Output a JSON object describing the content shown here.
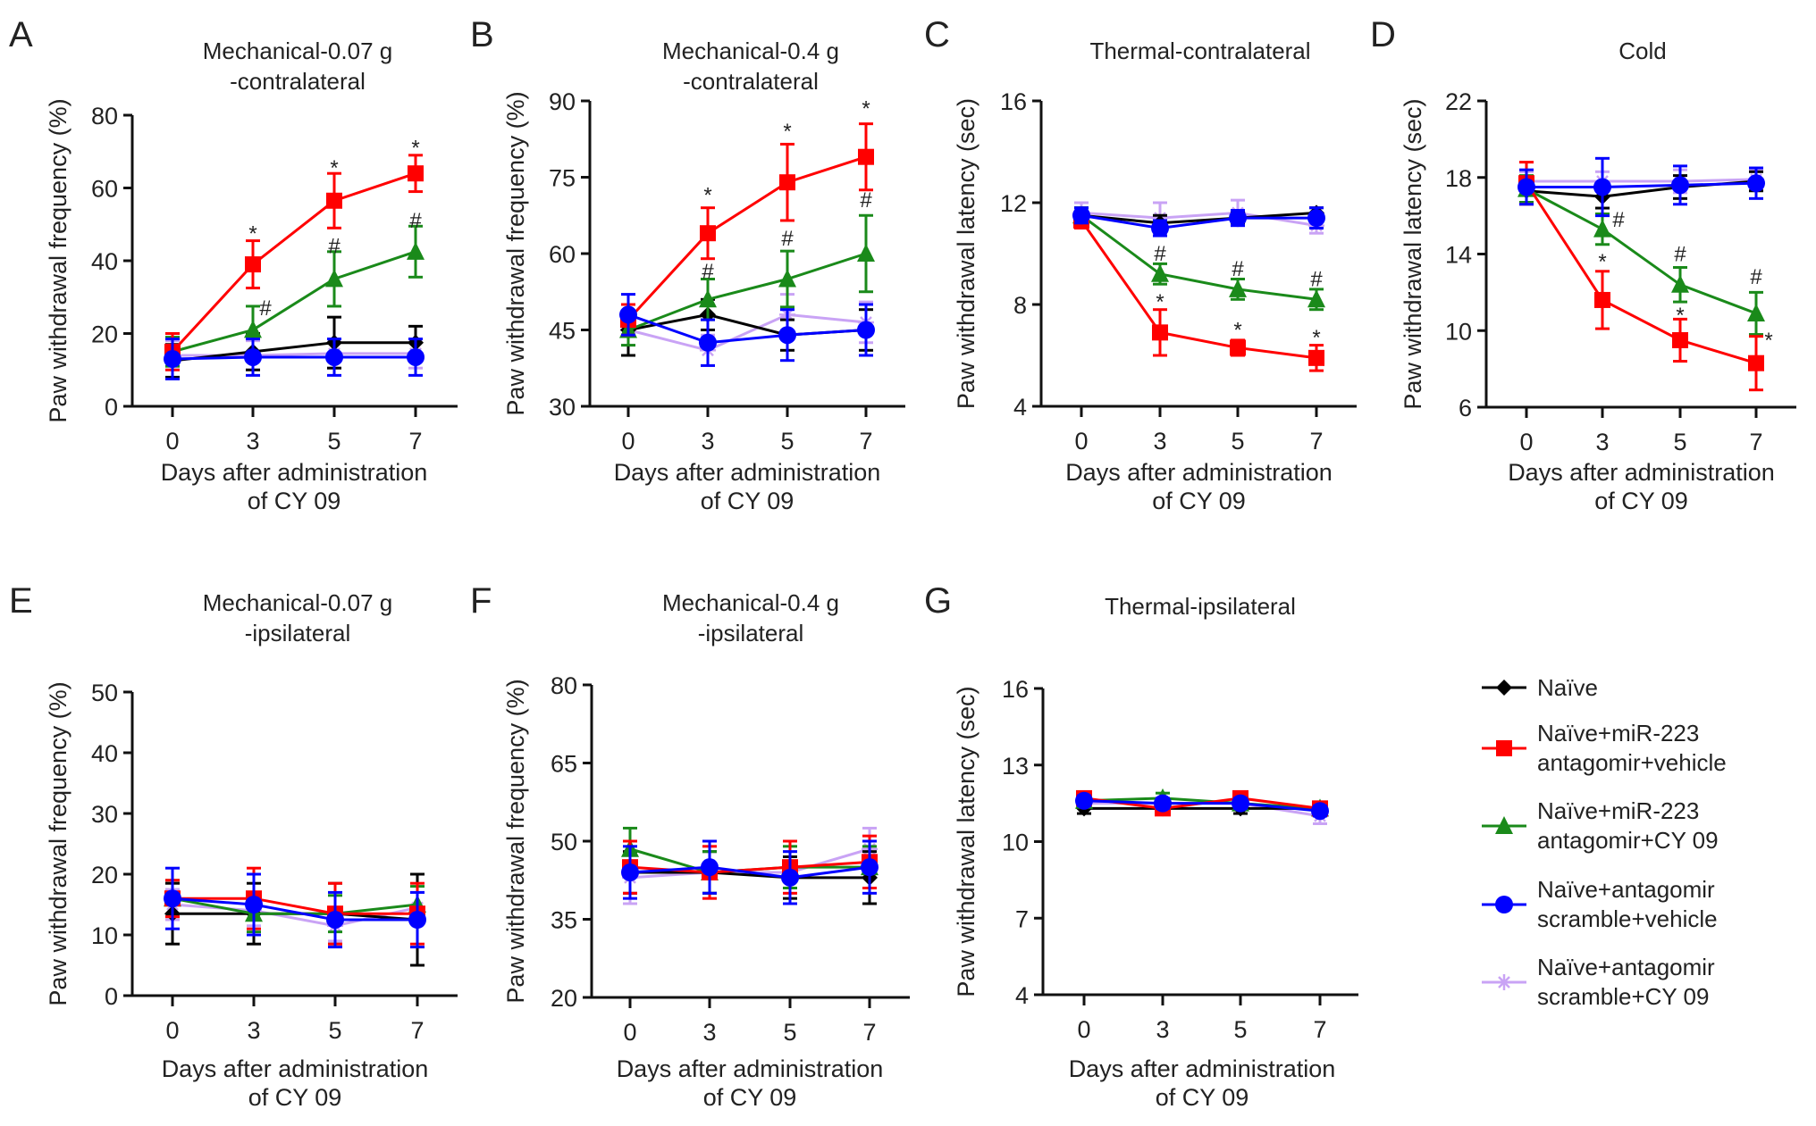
{
  "chart_data": [
    {
      "id": "A",
      "type": "line",
      "letter": "A",
      "title_lines": [
        "Mechanical-0.07 g",
        "-contralateral"
      ],
      "xlabel_lines": [
        "Days after administration",
        "of CY 09"
      ],
      "ylabel": "Paw withdrawal frequency (%)",
      "x": [
        0,
        3,
        5,
        7
      ],
      "x_tick_labels": [
        "0",
        "3",
        "5",
        "7"
      ],
      "ylim": [
        0,
        80
      ],
      "y_ticks": [
        0,
        20,
        40,
        60,
        80
      ],
      "series": [
        {
          "name": "Naïve+antagomir scramble+CY 09",
          "values": [
            14,
            14,
            14.5,
            14.5
          ],
          "err": [
            4,
            4,
            4,
            4
          ]
        },
        {
          "name": "Naïve",
          "values": [
            12.5,
            15,
            17.5,
            17.5
          ],
          "err": [
            4.5,
            5,
            7,
            4.5
          ]
        },
        {
          "name": "Naïve+miR-223 antagomir+CY 09",
          "values": [
            15,
            21,
            35,
            42.5
          ],
          "err": [
            4,
            6.5,
            7.5,
            7
          ]
        },
        {
          "name": "Naïve+miR-223 antagomir+vehicle",
          "values": [
            15,
            39,
            56.5,
            64
          ],
          "err": [
            5,
            6.5,
            7.5,
            5
          ]
        },
        {
          "name": "Naïve+antagomir scramble+vehicle",
          "values": [
            13,
            13.5,
            13.5,
            13.5
          ],
          "err": [
            5.5,
            5,
            5,
            5
          ]
        }
      ],
      "annotations": [
        {
          "text": "*",
          "x": 3,
          "y": 47.5,
          "dx": 0
        },
        {
          "text": "#",
          "x": 3,
          "y": 27,
          "dx": 14
        },
        {
          "text": "*",
          "x": 5,
          "y": 65.5,
          "dx": 0
        },
        {
          "text": "#",
          "x": 5,
          "y": 44,
          "dx": 0
        },
        {
          "text": "*",
          "x": 7,
          "y": 71,
          "dx": 0
        },
        {
          "text": "#",
          "x": 7,
          "y": 51,
          "dx": 0
        }
      ]
    },
    {
      "id": "B",
      "type": "line",
      "letter": "B",
      "title_lines": [
        "Mechanical-0.4 g",
        "-contralateral"
      ],
      "xlabel_lines": [
        "Days after administration",
        "of CY 09"
      ],
      "ylabel": "Paw withdrawal frequency (%)",
      "x": [
        0,
        3,
        5,
        7
      ],
      "x_tick_labels": [
        "0",
        "3",
        "5",
        "7"
      ],
      "ylim": [
        30,
        90
      ],
      "y_ticks": [
        30,
        45,
        60,
        75,
        90
      ],
      "series": [
        {
          "name": "Naïve+antagomir scramble+CY 09",
          "values": [
            45,
            41,
            48,
            46.5
          ],
          "err": [
            3,
            3,
            4,
            4
          ]
        },
        {
          "name": "Naïve",
          "values": [
            45,
            48,
            44,
            45
          ],
          "err": [
            5,
            3,
            3,
            4
          ]
        },
        {
          "name": "Naïve+miR-223 antagomir+CY 09",
          "values": [
            45,
            51,
            55,
            60
          ],
          "err": [
            3,
            4,
            5.5,
            7.5
          ]
        },
        {
          "name": "Naïve+miR-223 antagomir+vehicle",
          "values": [
            47,
            64,
            74,
            79
          ],
          "err": [
            3,
            5,
            7.5,
            6.5
          ]
        },
        {
          "name": "Naïve+antagomir scramble+vehicle",
          "values": [
            48,
            42.5,
            44,
            45
          ],
          "err": [
            4,
            4.5,
            5,
            5
          ]
        }
      ],
      "annotations": [
        {
          "text": "*",
          "x": 3,
          "y": 71.5,
          "dx": 0
        },
        {
          "text": "#",
          "x": 3,
          "y": 56.5,
          "dx": 0
        },
        {
          "text": "*",
          "x": 5,
          "y": 84,
          "dx": 0
        },
        {
          "text": "#",
          "x": 5,
          "y": 63,
          "dx": 0
        },
        {
          "text": "*",
          "x": 7,
          "y": 88.5,
          "dx": 0
        },
        {
          "text": "#",
          "x": 7,
          "y": 70.5,
          "dx": 0
        }
      ]
    },
    {
      "id": "C",
      "type": "line",
      "letter": "C",
      "title_lines": [
        "Thermal-contralateral"
      ],
      "xlabel_lines": [
        "Days after administration",
        "of CY 09"
      ],
      "ylabel": "Paw withdrawal latency (sec)",
      "x": [
        0,
        3,
        5,
        7
      ],
      "x_tick_labels": [
        "0",
        "3",
        "5",
        "7"
      ],
      "ylim": [
        4,
        16
      ],
      "y_ticks": [
        4,
        8,
        12,
        16
      ],
      "series": [
        {
          "name": "Naïve+antagomir scramble+CY 09",
          "values": [
            11.6,
            11.4,
            11.6,
            11.1
          ],
          "err": [
            0.4,
            0.6,
            0.5,
            0.3
          ]
        },
        {
          "name": "Naïve",
          "values": [
            11.5,
            11.2,
            11.4,
            11.6
          ],
          "err": [
            0.3,
            0.3,
            0.2,
            0.2
          ]
        },
        {
          "name": "Naïve+miR-223 antagomir+CY 09",
          "values": [
            11.5,
            9.2,
            8.6,
            8.2
          ],
          "err": [
            0.3,
            0.4,
            0.4,
            0.4
          ]
        },
        {
          "name": "Naïve+miR-223 antagomir+vehicle",
          "values": [
            11.3,
            6.9,
            6.3,
            5.9
          ],
          "err": [
            0.3,
            0.9,
            0.3,
            0.5
          ]
        },
        {
          "name": "Naïve+antagomir scramble+vehicle",
          "values": [
            11.5,
            11.0,
            11.4,
            11.4
          ],
          "err": [
            0.3,
            0.3,
            0.3,
            0.4
          ]
        }
      ],
      "annotations": [
        {
          "text": "#",
          "x": 3,
          "y": 10.0,
          "dx": 0
        },
        {
          "text": "*",
          "x": 3,
          "y": 8.1,
          "dx": 0
        },
        {
          "text": "#",
          "x": 5,
          "y": 9.4,
          "dx": 0
        },
        {
          "text": "*",
          "x": 5,
          "y": 7.0,
          "dx": 0
        },
        {
          "text": "#",
          "x": 7,
          "y": 9.0,
          "dx": 0
        },
        {
          "text": "*",
          "x": 7,
          "y": 6.7,
          "dx": 0
        }
      ]
    },
    {
      "id": "D",
      "type": "line",
      "letter": "D",
      "title_lines": [
        "Cold"
      ],
      "xlabel_lines": [
        "Days after administration",
        "of CY 09"
      ],
      "ylabel": "Paw withdrawal latency (sec)",
      "x": [
        0,
        3,
        5,
        7
      ],
      "x_tick_labels": [
        "0",
        "3",
        "5",
        "7"
      ],
      "ylim": [
        6,
        22
      ],
      "y_ticks": [
        6,
        10,
        14,
        18,
        22
      ],
      "series": [
        {
          "name": "Naïve+antagomir scramble+CY 09",
          "values": [
            17.8,
            17.8,
            17.8,
            17.9
          ],
          "err": [
            0.5,
            0.5,
            0.6,
            0.5
          ]
        },
        {
          "name": "Naïve",
          "values": [
            17.3,
            17.0,
            17.5,
            17.8
          ],
          "err": [
            0.6,
            0.6,
            0.6,
            0.5
          ]
        },
        {
          "name": "Naïve+miR-223 antagomir+CY 09",
          "values": [
            17.4,
            15.3,
            12.4,
            10.9
          ],
          "err": [
            0.7,
            0.8,
            0.9,
            1.1
          ]
        },
        {
          "name": "Naïve+miR-223 antagomir+vehicle",
          "values": [
            17.7,
            11.6,
            9.5,
            8.3
          ],
          "err": [
            1.1,
            1.5,
            1.1,
            1.4
          ]
        },
        {
          "name": "Naïve+antagomir scramble+vehicle",
          "values": [
            17.5,
            17.5,
            17.6,
            17.7
          ],
          "err": [
            0.9,
            1.5,
            1.0,
            0.8
          ]
        }
      ],
      "annotations": [
        {
          "text": "#",
          "x": 3,
          "y": 15.8,
          "dx": 18
        },
        {
          "text": "*",
          "x": 3,
          "y": 13.6,
          "dx": 0
        },
        {
          "text": "#",
          "x": 5,
          "y": 14.0,
          "dx": 0
        },
        {
          "text": "*",
          "x": 5,
          "y": 10.8,
          "dx": 0
        },
        {
          "text": "#",
          "x": 7,
          "y": 12.8,
          "dx": 0
        },
        {
          "text": "*",
          "x": 7,
          "y": 9.5,
          "dx": 14
        }
      ]
    },
    {
      "id": "E",
      "type": "line",
      "letter": "E",
      "title_lines": [
        "Mechanical-0.07 g",
        "-ipsilateral"
      ],
      "xlabel_lines": [
        "Days after administration",
        "of CY 09"
      ],
      "ylabel": "Paw withdrawal frequency (%)",
      "x": [
        0,
        3,
        5,
        7
      ],
      "x_tick_labels": [
        "0",
        "3",
        "5",
        "7"
      ],
      "ylim": [
        0,
        50
      ],
      "y_ticks": [
        0,
        10,
        20,
        30,
        40,
        50
      ],
      "series": [
        {
          "name": "Naïve+antagomir scramble+CY 09",
          "values": [
            15,
            14,
            11.5,
            14.5
          ],
          "err": [
            2.5,
            2.5,
            2.5,
            2.5
          ]
        },
        {
          "name": "Naïve",
          "values": [
            13.5,
            13.5,
            13.5,
            12.5
          ],
          "err": [
            5,
            5,
            5,
            7.5
          ]
        },
        {
          "name": "Naïve+miR-223 antagomir+CY 09",
          "values": [
            16,
            13.5,
            13.5,
            15
          ],
          "err": [
            3,
            3,
            3,
            3
          ]
        },
        {
          "name": "Naïve+miR-223 antagomir+vehicle",
          "values": [
            16,
            16,
            13.5,
            13.5
          ],
          "err": [
            3,
            5,
            5,
            5
          ]
        },
        {
          "name": "Naïve+antagomir scramble+vehicle",
          "values": [
            16,
            15,
            12.5,
            12.5
          ],
          "err": [
            5,
            5,
            4.5,
            4.5
          ]
        }
      ],
      "annotations": []
    },
    {
      "id": "F",
      "type": "line",
      "letter": "F",
      "title_lines": [
        "Mechanical-0.4 g",
        "-ipsilateral"
      ],
      "xlabel_lines": [
        "Days after administration",
        "of CY 09"
      ],
      "ylabel": "Paw withdrawal frequency (%)",
      "x": [
        0,
        3,
        5,
        7
      ],
      "x_tick_labels": [
        "0",
        "3",
        "5",
        "7"
      ],
      "ylim": [
        20,
        80
      ],
      "y_ticks": [
        20,
        35,
        50,
        65,
        80
      ],
      "series": [
        {
          "name": "Naïve+antagomir scramble+CY 09",
          "values": [
            43,
            44,
            44,
            48.5
          ],
          "err": [
            5,
            4,
            4,
            4
          ]
        },
        {
          "name": "Naïve",
          "values": [
            44,
            44,
            43,
            43
          ],
          "err": [
            4,
            4,
            4,
            5
          ]
        },
        {
          "name": "Naïve+miR-223 antagomir+CY 09",
          "values": [
            48.5,
            44,
            45,
            45
          ],
          "err": [
            4,
            4,
            4,
            4
          ]
        },
        {
          "name": "Naïve+miR-223 antagomir+vehicle",
          "values": [
            45,
            44,
            45,
            46
          ],
          "err": [
            5,
            5,
            5,
            5
          ]
        },
        {
          "name": "Naïve+antagomir scramble+vehicle",
          "values": [
            44,
            45,
            43,
            45
          ],
          "err": [
            5,
            5,
            5,
            5
          ]
        }
      ],
      "annotations": []
    },
    {
      "id": "G",
      "type": "line",
      "letter": "G",
      "title_lines": [
        "Thermal-ipsilateral"
      ],
      "xlabel_lines": [
        "Days after administration",
        "of CY 09"
      ],
      "ylabel": "Paw withdrawal latency (sec)",
      "x": [
        0,
        3,
        5,
        7
      ],
      "x_tick_labels": [
        "0",
        "3",
        "5",
        "7"
      ],
      "ylim": [
        4,
        16
      ],
      "y_ticks": [
        4,
        7,
        10,
        13,
        16
      ],
      "series": [
        {
          "name": "Naïve+antagomir scramble+CY 09",
          "values": [
            11.5,
            11.5,
            11.5,
            11.0
          ],
          "err": [
            0.2,
            0.2,
            0.2,
            0.3
          ]
        },
        {
          "name": "Naïve",
          "values": [
            11.3,
            11.3,
            11.3,
            11.3
          ],
          "err": [
            0.2,
            0.2,
            0.2,
            0.2
          ]
        },
        {
          "name": "Naïve+miR-223 antagomir+CY 09",
          "values": [
            11.6,
            11.7,
            11.5,
            11.3
          ],
          "err": [
            0.2,
            0.2,
            0.2,
            0.2
          ]
        },
        {
          "name": "Naïve+miR-223 antagomir+vehicle",
          "values": [
            11.7,
            11.3,
            11.7,
            11.3
          ],
          "err": [
            0.2,
            0.2,
            0.2,
            0.2
          ]
        },
        {
          "name": "Naïve+antagomir scramble+vehicle",
          "values": [
            11.6,
            11.5,
            11.5,
            11.2
          ],
          "err": [
            0.2,
            0.2,
            0.2,
            0.2
          ]
        }
      ],
      "annotations": []
    }
  ],
  "legend": {
    "placement": "bottom-right",
    "items": [
      {
        "name": "Naïve",
        "lines": [
          "Naïve"
        ],
        "color": "#000000",
        "marker": "diamond"
      },
      {
        "name": "Naïve+miR-223 antagomir+vehicle",
        "lines": [
          "Naïve+miR-223",
          "antagomir+vehicle"
        ],
        "color": "#ff0000",
        "marker": "square"
      },
      {
        "name": "Naïve+miR-223 antagomir+CY 09",
        "lines": [
          "Naïve+miR-223",
          "antagomir+CY 09"
        ],
        "color": "#1a8a1a",
        "marker": "triangle"
      },
      {
        "name": "Naïve+antagomir scramble+vehicle",
        "lines": [
          "Naïve+antagomir",
          "scramble+vehicle"
        ],
        "color": "#0000ff",
        "marker": "circle"
      },
      {
        "name": "Naïve+antagomir scramble+CY 09",
        "lines": [
          "Naïve+antagomir",
          "scramble+CY 09"
        ],
        "color": "#c9a3f5",
        "marker": "asterisk"
      }
    ]
  }
}
